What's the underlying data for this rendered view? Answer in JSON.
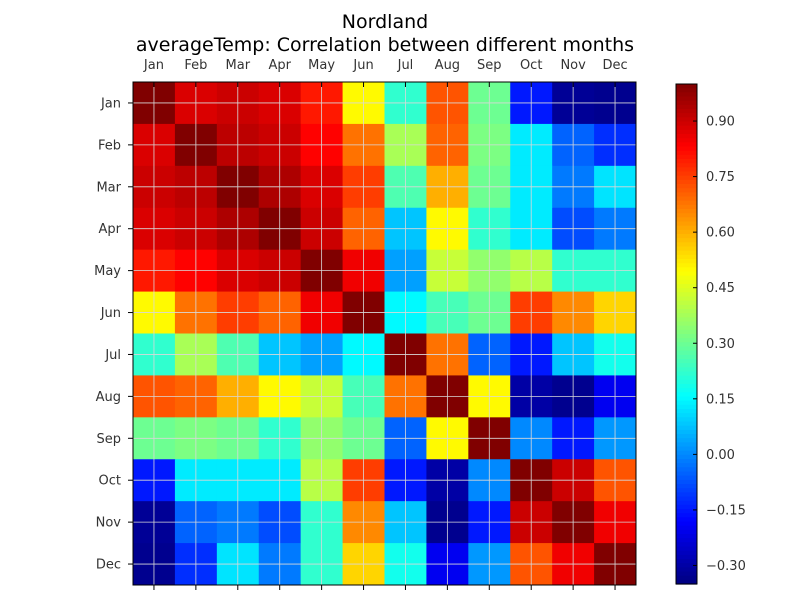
{
  "chart_data": {
    "type": "heatmap",
    "title": "Nordland",
    "subtitle": "averageTemp: Correlation between different months",
    "categories": [
      "Jan",
      "Feb",
      "Mar",
      "Apr",
      "May",
      "Jun",
      "Jul",
      "Aug",
      "Sep",
      "Oct",
      "Nov",
      "Dec"
    ],
    "colormap": "jet",
    "vmin": -0.35,
    "vmax": 1.0,
    "colorbar_ticks": [
      "0.90",
      "0.75",
      "0.60",
      "0.45",
      "0.30",
      "0.15",
      "0.00",
      "−0.15",
      "−0.30"
    ],
    "grid": true,
    "x_ticks_position": "top",
    "values": [
      [
        1.0,
        0.88,
        0.9,
        0.88,
        0.8,
        0.5,
        0.22,
        0.72,
        0.3,
        -0.15,
        -0.32,
        -0.33
      ],
      [
        0.88,
        1.0,
        0.92,
        0.9,
        0.83,
        0.68,
        0.38,
        0.7,
        0.32,
        0.13,
        -0.05,
        -0.12
      ],
      [
        0.9,
        0.92,
        1.0,
        0.94,
        0.88,
        0.75,
        0.26,
        0.6,
        0.3,
        0.13,
        -0.02,
        0.12
      ],
      [
        0.88,
        0.9,
        0.94,
        1.0,
        0.9,
        0.7,
        0.08,
        0.5,
        0.22,
        0.13,
        -0.08,
        -0.02
      ],
      [
        0.8,
        0.83,
        0.88,
        0.9,
        1.0,
        0.85,
        0.03,
        0.42,
        0.35,
        0.4,
        0.22,
        0.22
      ],
      [
        0.5,
        0.68,
        0.75,
        0.7,
        0.85,
        1.0,
        0.15,
        0.25,
        0.3,
        0.75,
        0.65,
        0.55
      ],
      [
        0.22,
        0.38,
        0.26,
        0.08,
        0.03,
        0.15,
        1.0,
        0.68,
        -0.05,
        -0.15,
        0.08,
        0.18
      ],
      [
        0.72,
        0.7,
        0.6,
        0.5,
        0.42,
        0.25,
        0.68,
        1.0,
        0.5,
        -0.3,
        -0.33,
        -0.2
      ],
      [
        0.3,
        0.32,
        0.3,
        0.22,
        0.35,
        0.3,
        -0.05,
        0.5,
        1.0,
        0.0,
        -0.15,
        0.02
      ],
      [
        -0.15,
        0.13,
        0.13,
        0.13,
        0.4,
        0.75,
        -0.15,
        -0.3,
        0.0,
        1.0,
        0.9,
        0.72
      ],
      [
        -0.32,
        -0.05,
        -0.02,
        -0.08,
        0.22,
        0.65,
        0.08,
        -0.33,
        -0.15,
        0.9,
        1.0,
        0.85
      ],
      [
        -0.33,
        -0.12,
        0.12,
        -0.02,
        0.22,
        0.55,
        0.18,
        -0.2,
        0.02,
        0.72,
        0.85,
        1.0
      ]
    ]
  }
}
